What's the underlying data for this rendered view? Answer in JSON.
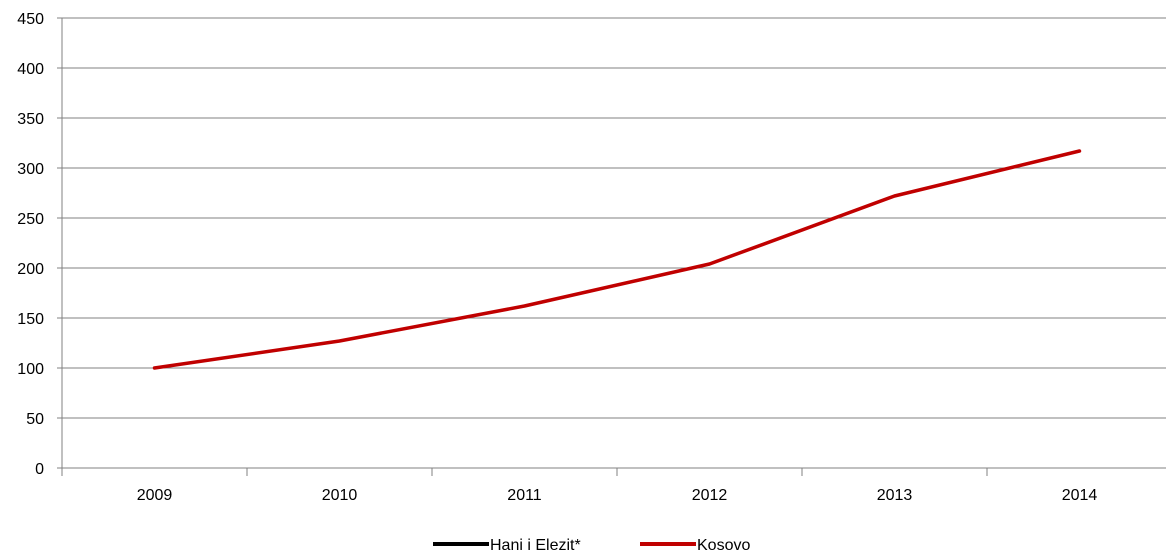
{
  "chart_data": {
    "type": "line",
    "categories": [
      "2009",
      "2010",
      "2011",
      "2012",
      "2013",
      "2014"
    ],
    "series": [
      {
        "name": "Hani i Elezit*",
        "values": [
          null,
          null,
          null,
          null,
          null,
          null
        ],
        "color": "#000000"
      },
      {
        "name": "Kosovo",
        "values": [
          100,
          127,
          162,
          204,
          272,
          317
        ],
        "color": "#c00000"
      }
    ],
    "ylim": [
      0,
      450
    ],
    "yticks": [
      0,
      50,
      100,
      150,
      200,
      250,
      300,
      350,
      400,
      450
    ],
    "grid": true,
    "legend_position": "bottom-center",
    "gridline_color": "#808080"
  }
}
